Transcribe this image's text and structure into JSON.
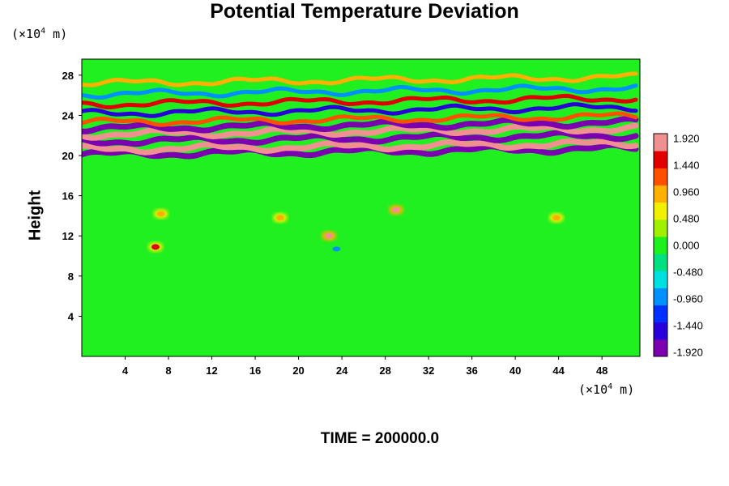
{
  "chart_data": {
    "type": "heatmap",
    "title": "Potential Temperature Deviation",
    "ylabel": "Height",
    "xlabel": "",
    "x_unit": {
      "prefix": "(×10",
      "exp": "4",
      "suffix": " m)"
    },
    "y_unit": {
      "prefix": "(×10",
      "exp": "4",
      "suffix": " m)"
    },
    "xlim": [
      0,
      51.5
    ],
    "ylim": [
      0,
      29.6
    ],
    "x_ticks": [
      4,
      8,
      12,
      16,
      20,
      24,
      28,
      32,
      36,
      40,
      44,
      48
    ],
    "y_ticks": [
      4,
      8,
      12,
      16,
      20,
      24,
      28
    ],
    "colorbar": {
      "levels": [
        1.92,
        1.44,
        0.96,
        0.48,
        0.0,
        -0.48,
        -0.96,
        -1.44,
        -1.92
      ],
      "labels": [
        "1.920",
        "1.440",
        "0.960",
        "0.480",
        "0.000",
        "-0.480",
        "-0.960",
        "-1.440",
        "-1.920"
      ],
      "range": [
        -2.0,
        2.0
      ],
      "colors": [
        "#7a00b0",
        "#2a00d8",
        "#0030ff",
        "#0090ff",
        "#00e0e0",
        "#00e080",
        "#20f020",
        "#a0f000",
        "#f0f000",
        "#ffb000",
        "#ff5000",
        "#e00000",
        "#f09090"
      ]
    },
    "features": {
      "background_value": 0.1,
      "stratified_bands": [
        {
          "y": 20.4,
          "value": -1.92
        },
        {
          "y": 20.9,
          "value": 1.92
        },
        {
          "y": 21.7,
          "value": -1.92
        },
        {
          "y": 22.4,
          "value": 1.92
        },
        {
          "y": 23.0,
          "value": -1.92
        },
        {
          "y": 23.6,
          "value": 1.2
        },
        {
          "y": 24.5,
          "value": -1.44
        },
        {
          "y": 25.4,
          "value": 1.44
        },
        {
          "y": 26.4,
          "value": -0.96
        },
        {
          "y": 27.5,
          "value": 0.96
        }
      ],
      "hot_spots": [
        {
          "x": 29.0,
          "y": 14.6,
          "value": 1.92
        },
        {
          "x": 22.8,
          "y": 12.0,
          "value": 1.92
        },
        {
          "x": 7.3,
          "y": 14.2,
          "value": 0.96
        },
        {
          "x": 18.3,
          "y": 13.8,
          "value": 0.96
        },
        {
          "x": 43.8,
          "y": 13.8,
          "value": 0.96
        },
        {
          "x": 6.8,
          "y": 10.9,
          "value": 1.44
        }
      ],
      "cold_spots": [
        {
          "x": 23.5,
          "y": 10.7,
          "value": -0.96
        }
      ]
    }
  },
  "footer_text": "TIME = 200000.0"
}
